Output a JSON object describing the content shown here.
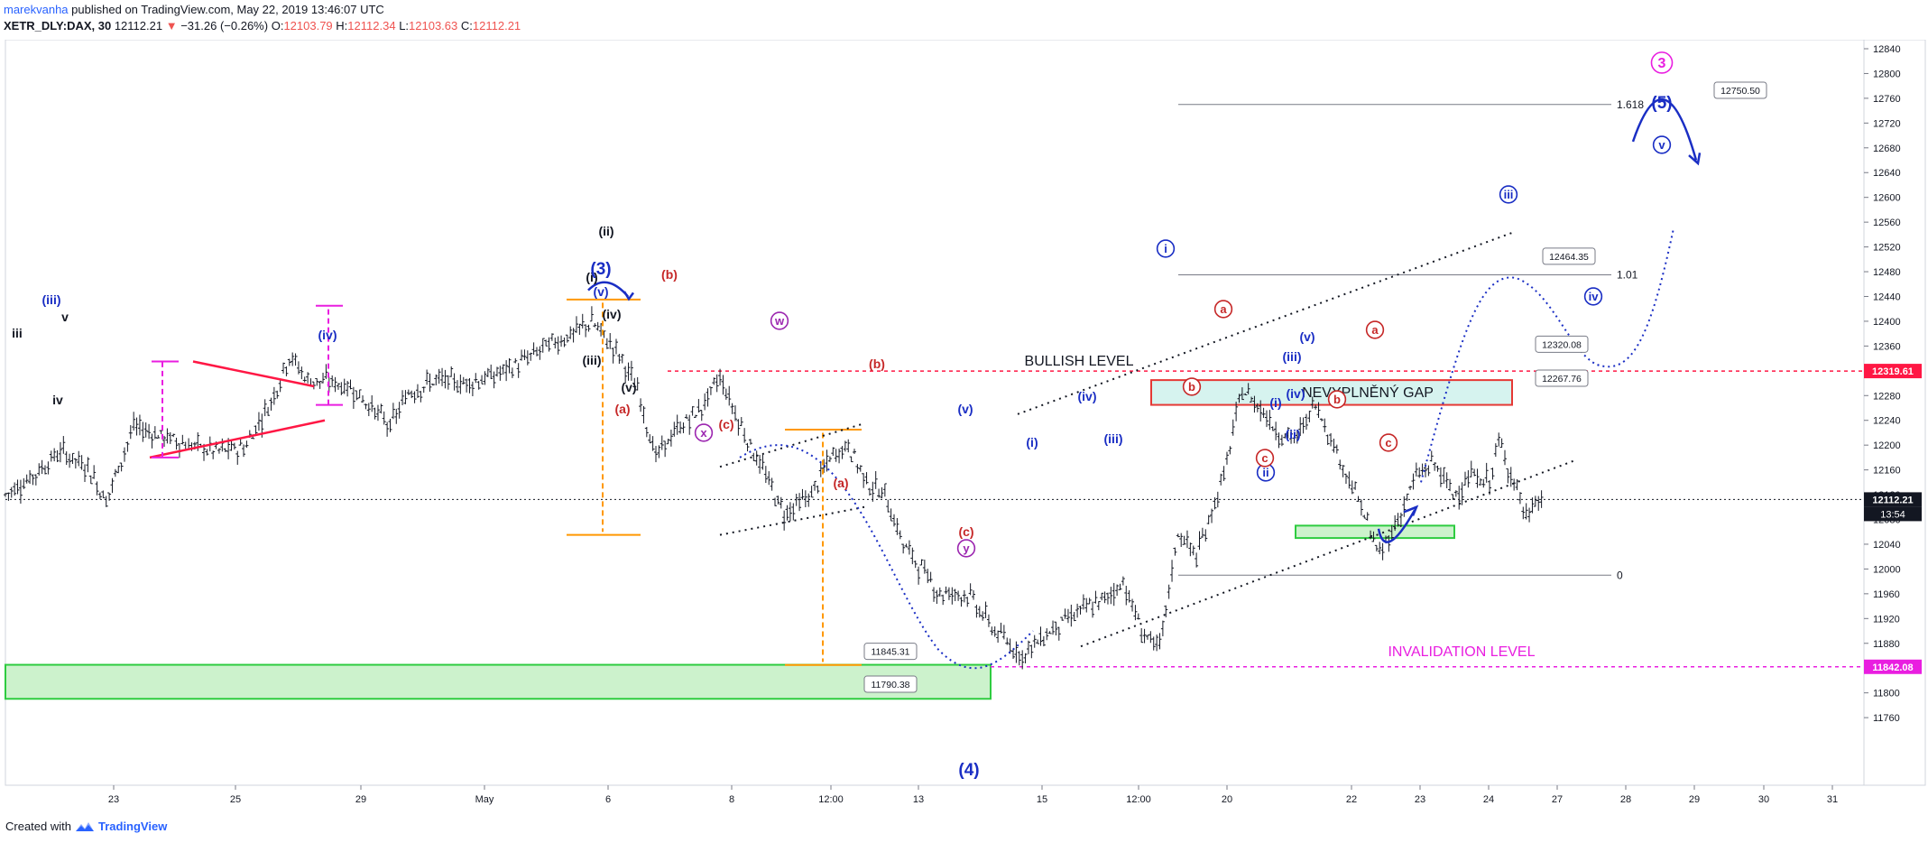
{
  "header": {
    "author": "marekvanha",
    "published": "published on TradingView.com, May 22, 2019 13:46:07 UTC",
    "symbol": "XETR_DLY:DAX, 30",
    "last": "12112.21",
    "arrow": "▼",
    "change": "−31.26 (−0.26%)",
    "o_label": "O:",
    "o_value": "12103.79",
    "h_label": "H:",
    "h_value": "12112.34",
    "l_label": "L:",
    "l_value": "12103.63",
    "c_label": "C:",
    "c_value": "12112.21"
  },
  "footer": {
    "created_with": "Created with",
    "brand": "TradingView"
  },
  "colors": {
    "bull": "#131722",
    "blue_wave": "#1a2ec4",
    "red_wave": "#c62828",
    "magenta": "#e91ee0",
    "purple": "#9c27b0",
    "orange": "#ff9800",
    "green_zone": "#4caf50",
    "red_line": "#ff1744"
  },
  "chart_data": {
    "type": "line",
    "series_style": "ohlc-bars",
    "x_ticks": [
      "23",
      "25",
      "29",
      "May",
      "6",
      "8",
      "12:00",
      "13",
      "15",
      "12:00",
      "20",
      "22",
      "23",
      "24",
      "27",
      "28",
      "29",
      "30",
      "31"
    ],
    "y_ticks": [
      11760,
      11800,
      11840,
      11880,
      11920,
      11960,
      12000,
      12040,
      12080,
      12120,
      12160,
      12200,
      12240,
      12280,
      12320,
      12360,
      12400,
      12440,
      12480,
      12520,
      12560,
      12600,
      12640,
      12680,
      12720,
      12760,
      12800,
      12840
    ],
    "ylim": [
      11738,
      12850
    ],
    "price_path": [
      [
        0,
        12120
      ],
      [
        3,
        12150
      ],
      [
        6,
        12190
      ],
      [
        9,
        12165
      ],
      [
        11,
        12110
      ],
      [
        14,
        12230
      ],
      [
        17,
        12215
      ],
      [
        20,
        12200
      ],
      [
        23,
        12190
      ],
      [
        26,
        12195
      ],
      [
        29,
        12270
      ],
      [
        31,
        12345
      ],
      [
        33,
        12305
      ],
      [
        36,
        12300
      ],
      [
        38,
        12290
      ],
      [
        40,
        12260
      ],
      [
        42,
        12230
      ],
      [
        44,
        12285
      ],
      [
        47,
        12305
      ],
      [
        50,
        12300
      ],
      [
        53,
        12310
      ],
      [
        56,
        12330
      ],
      [
        59,
        12360
      ],
      [
        62,
        12380
      ],
      [
        64,
        12400
      ],
      [
        67,
        12345
      ],
      [
        69,
        12290
      ],
      [
        71,
        12180
      ],
      [
        73,
        12220
      ],
      [
        76,
        12260
      ],
      [
        78,
        12310
      ],
      [
        80,
        12240
      ],
      [
        82,
        12180
      ],
      [
        85,
        12090
      ],
      [
        88,
        12120
      ],
      [
        90,
        12180
      ],
      [
        92,
        12200
      ],
      [
        94,
        12140
      ],
      [
        96,
        12120
      ],
      [
        98,
        12040
      ],
      [
        100,
        12000
      ],
      [
        102,
        11960
      ],
      [
        105,
        11960
      ],
      [
        108,
        11900
      ],
      [
        111,
        11860
      ],
      [
        114,
        11900
      ],
      [
        117,
        11930
      ],
      [
        120,
        11950
      ],
      [
        122,
        11980
      ],
      [
        124,
        11900
      ],
      [
        126,
        11870
      ],
      [
        128,
        12060
      ],
      [
        130,
        12020
      ],
      [
        133,
        12150
      ],
      [
        135,
        12290
      ],
      [
        137,
        12260
      ],
      [
        139,
        12220
      ],
      [
        141,
        12210
      ],
      [
        143,
        12270
      ],
      [
        145,
        12200
      ],
      [
        148,
        12100
      ],
      [
        150,
        12020
      ],
      [
        152,
        12080
      ],
      [
        154,
        12150
      ],
      [
        156,
        12170
      ],
      [
        158,
        12120
      ],
      [
        160,
        12150
      ],
      [
        162,
        12140
      ],
      [
        163,
        12205
      ],
      [
        165,
        12130
      ],
      [
        166,
        12080
      ],
      [
        167,
        12110
      ],
      [
        168,
        12112
      ]
    ],
    "current_price": 12112.21,
    "price_badges": [
      {
        "value": 12319.61,
        "label": "12319.61",
        "color": "#ff1744"
      },
      {
        "value": 12112.21,
        "label": "12112.21",
        "color": "#131722"
      },
      {
        "value": 11842.08,
        "label": "11842.08",
        "color": "#e91ee0"
      }
    ],
    "countdown": "13:54",
    "levels": [
      {
        "name": "bullish",
        "value": 12319.61,
        "label": "BULLISH LEVEL"
      },
      {
        "name": "invalidation",
        "value": 11842.08,
        "label": "INVALIDATION LEVEL"
      }
    ],
    "fib_levels": [
      {
        "ratio": "1.618",
        "value": 12750
      },
      {
        "ratio": "1.01",
        "value": 12475
      },
      {
        "ratio": "0",
        "value": 11990
      }
    ],
    "zones": [
      {
        "name": "gap",
        "label": "NEVYPLNĚNÝ GAP",
        "top": 12305,
        "bottom": 12265
      },
      {
        "name": "support-left",
        "top": 11845.31,
        "bottom": 11790.38
      },
      {
        "name": "support-right",
        "top": 12070,
        "bottom": 12050
      }
    ],
    "callouts": [
      "12750.50",
      "12464.35",
      "12320.08",
      "12267.76",
      "11845.31",
      "11790.38"
    ],
    "wave_labels": {
      "black": [
        "iii",
        "v",
        "iv",
        "(i)",
        "(ii)",
        "(iii)",
        "(iv)",
        "(v)"
      ],
      "blue": [
        "(iii)",
        "(iv)",
        "(3)",
        "(v)",
        "(4)",
        "(i)",
        "(iii)",
        "(iv)",
        "(v)",
        "(i)",
        "(ii)",
        "(iii)",
        "(iv)",
        "(v)",
        "(5)"
      ],
      "blue_circled": [
        "i",
        "ii",
        "iii",
        "iv",
        "v"
      ],
      "red": [
        "(b)",
        "(a)",
        "(c)",
        "(b)",
        "(a)",
        "(c)"
      ],
      "red_circled": [
        "a",
        "b",
        "c",
        "a",
        "b",
        "c"
      ],
      "magenta_circled": [
        "w",
        "x",
        "y",
        "3"
      ]
    }
  }
}
